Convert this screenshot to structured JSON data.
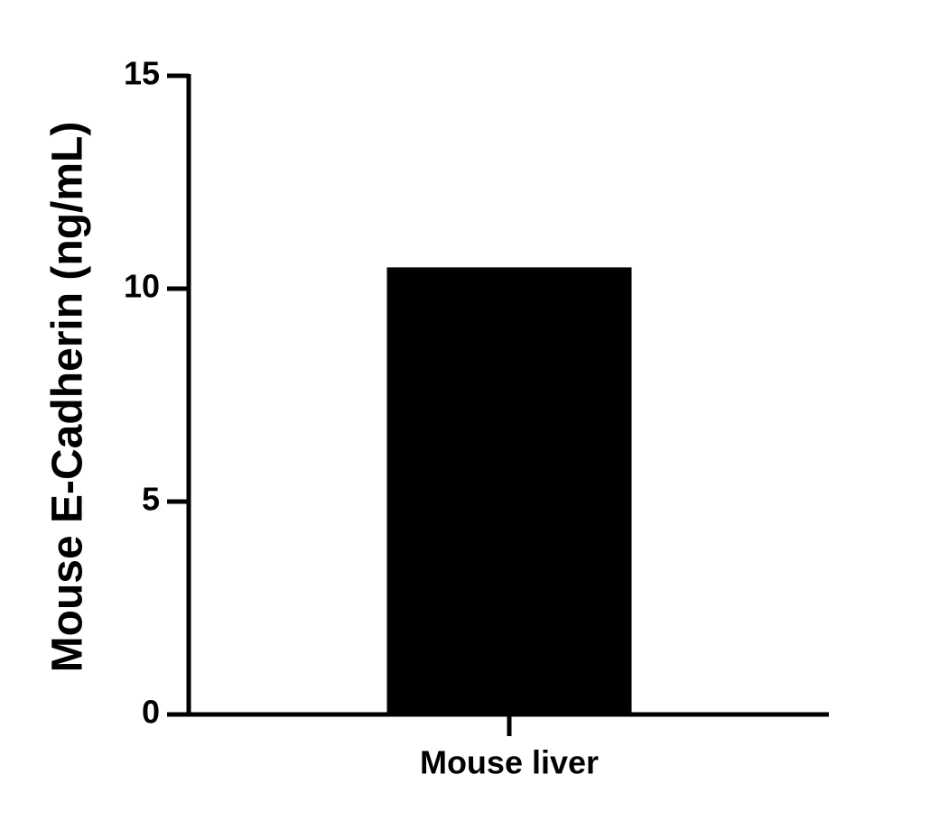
{
  "chart_data": {
    "type": "bar",
    "y_label": "Mouse E-Cadherin (ng/mL)",
    "categories": [
      "Mouse liver"
    ],
    "values": [
      10.5
    ],
    "color": "#000000",
    "ylim": [
      0,
      15
    ],
    "yticks": [
      0,
      5,
      10,
      15
    ]
  }
}
